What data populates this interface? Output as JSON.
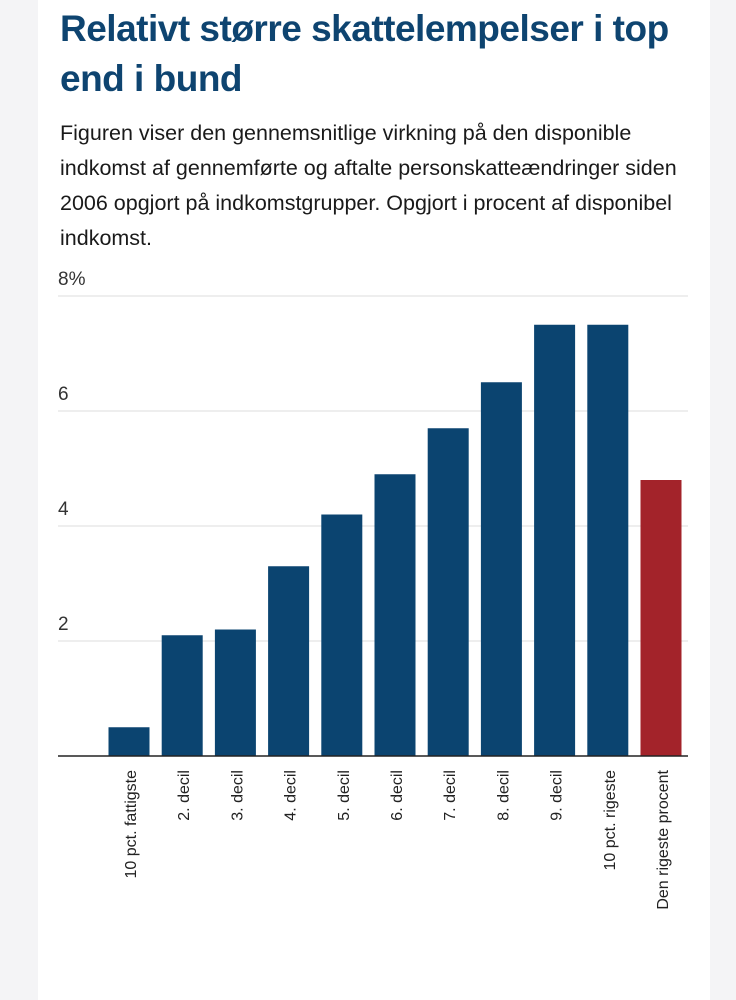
{
  "header": {
    "title": "Relativt større skattelempelser i top end i bund",
    "subtitle": "Figuren viser den gennemsnitlige virkning på den disponible indkomst af gennemførte og aftalte personskatteændringer siden 2006 opgjort på indkomstgrupper. Opgjort i procent af disponibel indkomst."
  },
  "chart_data": {
    "type": "bar",
    "title": "Relativt større skattelempelser i top end i bund",
    "ylim": [
      0,
      8
    ],
    "y_ticks": [
      {
        "value": 2,
        "label": "2"
      },
      {
        "value": 4,
        "label": "4"
      },
      {
        "value": 6,
        "label": "6"
      },
      {
        "value": 8,
        "label": "8%"
      }
    ],
    "categories": [
      "10 pct. fattigste",
      "2. decil",
      "3. decil",
      "4. decil",
      "5. decil",
      "6. decil",
      "7. decil",
      "8. decil",
      "9. decil",
      "10 pct. rigeste",
      "Den rigeste procent"
    ],
    "values": [
      0.5,
      2.1,
      2.2,
      3.3,
      4.2,
      4.9,
      5.7,
      6.5,
      7.5,
      7.5,
      4.8
    ],
    "colors": [
      "#0b4470",
      "#0b4470",
      "#0b4470",
      "#0b4470",
      "#0b4470",
      "#0b4470",
      "#0b4470",
      "#0b4470",
      "#0b4470",
      "#0b4470",
      "#a3232a"
    ],
    "grid": true
  }
}
